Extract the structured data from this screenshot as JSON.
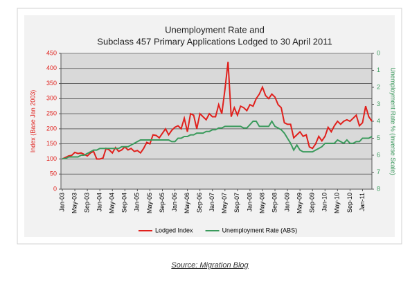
{
  "chart_data": {
    "type": "line",
    "title": [
      "Unemployment Rate and",
      "Subclass 457 Primary Applications Lodged to 30 April 2011"
    ],
    "ylabel": "Index (Base Jan 2003)",
    "y2label": "Unemployment Rate % (Inverse Scale)",
    "source": "Source: Migration Blog",
    "categories": [
      "Jan-03",
      null,
      null,
      null,
      "May-03",
      null,
      null,
      null,
      "Sep-03",
      null,
      null,
      null,
      "Jan-04",
      null,
      null,
      null,
      "May-04",
      null,
      null,
      null,
      "Sep-04",
      null,
      null,
      null,
      "Jan-05",
      null,
      null,
      null,
      "May-05",
      null,
      null,
      null,
      "Sep-05",
      null,
      null,
      null,
      "Jan-06",
      null,
      null,
      null,
      "May-06",
      null,
      null,
      null,
      "Sep-06",
      null,
      null,
      null,
      "Jan-07",
      null,
      null,
      null,
      "May-07",
      null,
      null,
      null,
      "Sep-07",
      null,
      null,
      null,
      "Jan-08",
      null,
      null,
      null,
      "May-08",
      null,
      null,
      null,
      "Sep-08",
      null,
      null,
      null,
      "Jan-09",
      null,
      null,
      null,
      "May-09",
      null,
      null,
      null,
      "Sep-09",
      null,
      null,
      null,
      "Jan-10",
      null,
      null,
      null,
      "May-10",
      null,
      null,
      null,
      "Sep-10",
      null,
      null,
      null,
      "Jan-11",
      null,
      null,
      null
    ],
    "series": [
      {
        "name": "Lodged Index",
        "color": "#e0201c",
        "axis": "y",
        "values": [
          100,
          105,
          110,
          112,
          122,
          118,
          120,
          115,
          110,
          120,
          125,
          100,
          100,
          103,
          135,
          130,
          120,
          138,
          125,
          130,
          140,
          130,
          135,
          125,
          128,
          120,
          135,
          155,
          150,
          180,
          178,
          170,
          185,
          200,
          180,
          195,
          205,
          210,
          200,
          235,
          190,
          250,
          245,
          200,
          250,
          240,
          230,
          250,
          240,
          240,
          280,
          250,
          330,
          422,
          240,
          270,
          245,
          275,
          270,
          260,
          280,
          275,
          300,
          315,
          338,
          310,
          300,
          315,
          305,
          280,
          270,
          220,
          215,
          215,
          170,
          180,
          190,
          175,
          180,
          140,
          135,
          150,
          175,
          160,
          175,
          205,
          190,
          210,
          225,
          215,
          225,
          230,
          225,
          235,
          245,
          210,
          220,
          275,
          240,
          225
        ]
      },
      {
        "name": "Unemployment Rate (ABS)",
        "color": "#3a9a5c",
        "axis": "y2",
        "values": [
          6.2,
          6.2,
          6.1,
          6.1,
          6.1,
          6.1,
          6.0,
          6.0,
          5.9,
          5.8,
          5.7,
          5.7,
          5.6,
          5.6,
          5.6,
          5.6,
          5.6,
          5.6,
          5.6,
          5.5,
          5.5,
          5.5,
          5.4,
          5.3,
          5.2,
          5.1,
          5.1,
          5.1,
          5.1,
          5.1,
          5.1,
          5.1,
          5.1,
          5.1,
          5.1,
          5.2,
          5.2,
          5.0,
          5.0,
          4.9,
          4.9,
          4.8,
          4.8,
          4.7,
          4.7,
          4.7,
          4.6,
          4.6,
          4.5,
          4.5,
          4.4,
          4.4,
          4.3,
          4.3,
          4.3,
          4.3,
          4.3,
          4.3,
          4.4,
          4.4,
          4.2,
          4.0,
          4.0,
          4.3,
          4.3,
          4.3,
          4.3,
          4.0,
          4.3,
          4.4,
          4.5,
          4.7,
          5.0,
          5.3,
          5.7,
          5.4,
          5.7,
          5.8,
          5.8,
          5.8,
          5.8,
          5.7,
          5.6,
          5.5,
          5.3,
          5.3,
          5.3,
          5.3,
          5.1,
          5.2,
          5.3,
          5.1,
          5.3,
          5.3,
          5.2,
          5.2,
          5.0,
          5.0,
          5.0,
          4.9
        ]
      }
    ],
    "ylim": [
      0,
      450
    ],
    "yticks": [
      0,
      50,
      100,
      150,
      200,
      250,
      300,
      350,
      400,
      450
    ],
    "y2lim": [
      0,
      8
    ],
    "y2ticks": [
      0,
      1,
      2,
      3,
      4,
      5,
      6,
      7,
      8
    ],
    "y2_inverted": true,
    "grid": true,
    "legend": "bottom"
  }
}
